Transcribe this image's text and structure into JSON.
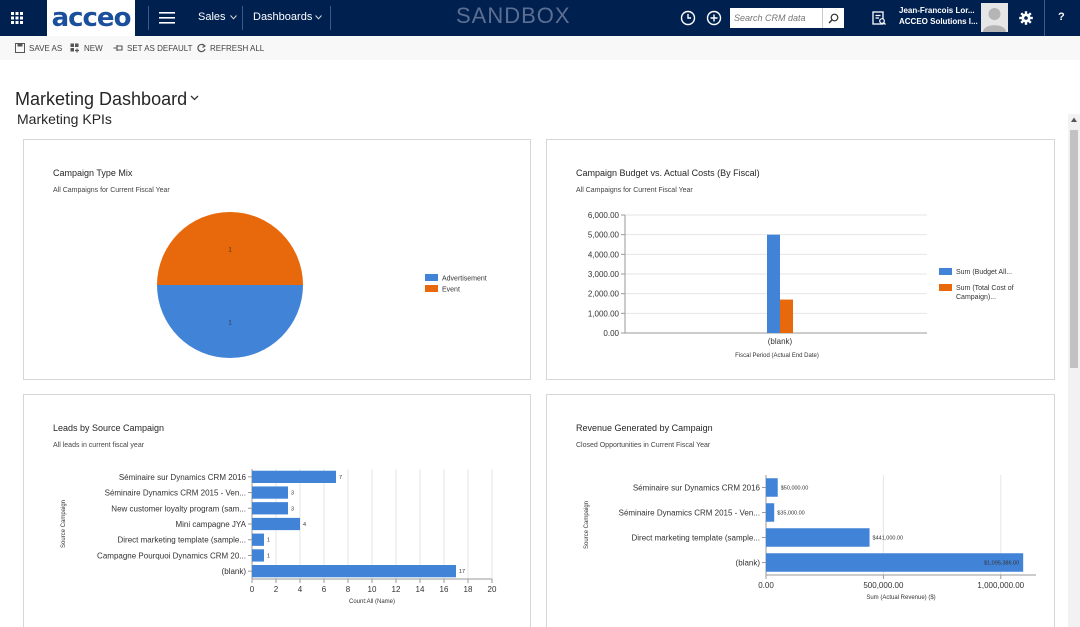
{
  "nav": {
    "logo_text": "acceo",
    "sales_label": "Sales",
    "dashboards_label": "Dashboards",
    "environment_label": "SANDBOX",
    "search_placeholder": "Search CRM data",
    "user_name": "Jean-Francois Lor...",
    "user_org": "ACCEO Solutions I...",
    "help_label": "?"
  },
  "commands": {
    "save_as": "SAVE AS",
    "new": "NEW",
    "set_as_default": "SET AS DEFAULT",
    "refresh_all": "REFRESH ALL"
  },
  "page": {
    "title": "Marketing Dashboard",
    "section_title": "Marketing KPIs"
  },
  "colors": {
    "nav_bg": "#002050",
    "blue": "#4183d7",
    "orange": "#e8690b",
    "grid": "#e6e6e6"
  },
  "chart_data": [
    {
      "id": "campaign_type_mix",
      "type": "pie",
      "title": "Campaign Type Mix",
      "subtitle": "All Campaigns for Current Fiscal Year",
      "slices": [
        {
          "label": "Advertisement",
          "value": 1,
          "display": "1"
        },
        {
          "label": "Event",
          "value": 1,
          "display": "1"
        }
      ],
      "legend": "right"
    },
    {
      "id": "budget_vs_actual",
      "type": "bar",
      "title": "Campaign Budget vs. Actual Costs (By Fiscal)",
      "subtitle": "All Campaigns for Current Fiscal Year",
      "categories": [
        "(blank)"
      ],
      "series": [
        {
          "name": "Sum (Budget All...",
          "values": [
            5000
          ]
        },
        {
          "name": "Sum (Total Cost of Campaign)...",
          "values": [
            1700
          ]
        }
      ],
      "ylim": [
        0,
        6000
      ],
      "yticks": [
        0,
        1000,
        2000,
        3000,
        4000,
        5000,
        6000
      ],
      "ytick_labels": [
        "0.00",
        "1,000.00",
        "2,000.00",
        "3,000.00",
        "4,000.00",
        "5,000.00",
        "6,000.00"
      ],
      "xlabel": "Fiscal Period (Actual End Date)",
      "legend_lines": [
        [
          "Sum (Budget All..."
        ],
        [
          "Sum (Total Cost of",
          "Campaign)..."
        ]
      ],
      "legend": "right"
    },
    {
      "id": "leads_by_source",
      "type": "bar",
      "orientation": "horizontal",
      "title": "Leads by Source Campaign",
      "subtitle": "All leads in current fiscal year",
      "categories": [
        "Séminaire sur Dynamics CRM 2016",
        "Séminaire Dynamics CRM 2015 - Ven...",
        "New customer loyalty program (sam...",
        "Mini campagne JYA",
        "Direct marketing template (sample...",
        "Campagne Pourquoi Dynamics CRM 20...",
        "(blank)"
      ],
      "values": [
        7,
        3,
        3,
        4,
        1,
        1,
        17
      ],
      "value_labels": [
        "7",
        "3",
        "3",
        "4",
        "1",
        "1",
        "17"
      ],
      "xlim": [
        0,
        20
      ],
      "xticks": [
        0,
        2,
        4,
        6,
        8,
        10,
        12,
        14,
        16,
        18,
        20
      ],
      "xtick_labels": [
        "0",
        "2",
        "4",
        "6",
        "8",
        "10",
        "12",
        "14",
        "16",
        "18",
        "20"
      ],
      "xlabel": "Count:All (Name)",
      "ylabel": "Source Campaign"
    },
    {
      "id": "revenue_by_campaign",
      "type": "bar",
      "orientation": "horizontal",
      "title": "Revenue Generated by Campaign",
      "subtitle": "Closed Opportunities in Current Fiscal Year",
      "categories": [
        "Séminaire sur Dynamics CRM 2016",
        "Séminaire Dynamics CRM 2015 - Ven...",
        "Direct marketing template (sample...",
        "(blank)"
      ],
      "values": [
        50000,
        35000,
        441000,
        1095386
      ],
      "value_labels": [
        "$50,000.00",
        "$35,000.00",
        "$441,000.00",
        "$1,095,386.00"
      ],
      "xlim": [
        0,
        1150000
      ],
      "xticks": [
        0,
        500000,
        1000000
      ],
      "xtick_labels": [
        "0.00",
        "500,000.00",
        "1,000,000.00"
      ],
      "xlabel": "Sum (Actual Revenue) ($)",
      "ylabel": "Source Campaign"
    }
  ]
}
